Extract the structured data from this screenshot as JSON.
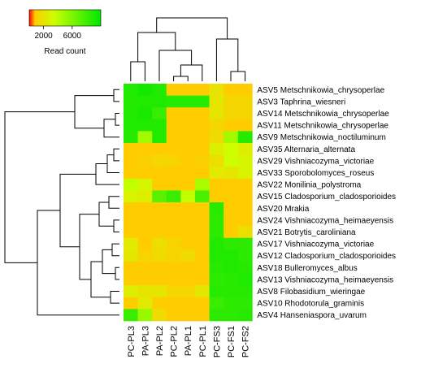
{
  "chart_data": {
    "type": "heatmap",
    "title": "",
    "xlabel": "",
    "ylabel": "",
    "columns": [
      "PC-PL3",
      "PA-PL3",
      "PA-PL2",
      "PC-PL2",
      "PA-PL1",
      "PC-PL1",
      "PC-FS3",
      "PC-FS1",
      "PC-FS2"
    ],
    "rows": [
      "ASV5 Metschnikowia_chrysoperlae",
      "ASV3 Taphrina_wiesneri",
      "ASV14 Metschnikowia_chrysoperlae",
      "ASV11 Metschnikowia_chrysoperlae",
      "ASV9 Metschnikowia_noctiluminum",
      "ASV35 Alternaria_alternata",
      "ASV29 Vishniacozyma_victoriae",
      "ASV33 Sporobolomyces_roseus",
      "ASV22 Monilinia_polystroma",
      "ASV15 Cladosporium_cladosporioides",
      "ASV20 Mrakia",
      "ASV24 Vishniacozyma_heimaeyensis",
      "ASV21 Botrytis_caroliniana",
      "ASV17 Vishniacozyma_victoriae",
      "ASV12 Cladosporium_cladosporioides",
      "ASV18 Bulleromyces_albus",
      "ASV13 Vishniacozyma_heimaeyensis",
      "ASV8 Filobasidium_wieringae",
      "ASV10 Rhodotorula_graminis",
      "ASV4 Hanseniaspora_uvarum"
    ],
    "values": [
      [
        9000,
        9400,
        9000,
        800,
        800,
        800,
        2000,
        800,
        800
      ],
      [
        9000,
        9000,
        9000,
        8800,
        8800,
        8800,
        2200,
        1400,
        1400
      ],
      [
        9000,
        9200,
        8200,
        800,
        800,
        800,
        2200,
        1400,
        1400
      ],
      [
        9000,
        9000,
        9000,
        800,
        800,
        800,
        1400,
        800,
        800
      ],
      [
        8800,
        4800,
        9000,
        800,
        800,
        800,
        1600,
        4800,
        8800
      ],
      [
        800,
        800,
        800,
        800,
        800,
        800,
        2600,
        3400,
        2600
      ],
      [
        800,
        1000,
        1400,
        1200,
        800,
        1000,
        1800,
        3400,
        3000
      ],
      [
        800,
        800,
        800,
        800,
        800,
        800,
        2400,
        2200,
        2800
      ],
      [
        3800,
        3000,
        800,
        800,
        800,
        4600,
        800,
        800,
        800
      ],
      [
        2800,
        2600,
        7200,
        8200,
        3800,
        7600,
        800,
        800,
        800
      ],
      [
        800,
        800,
        800,
        800,
        800,
        800,
        8800,
        800,
        800
      ],
      [
        800,
        800,
        800,
        800,
        800,
        800,
        8600,
        800,
        800
      ],
      [
        800,
        800,
        800,
        800,
        800,
        800,
        8600,
        800,
        1800
      ],
      [
        2400,
        800,
        1800,
        1200,
        800,
        800,
        9000,
        8600,
        8600
      ],
      [
        2200,
        1200,
        1600,
        1200,
        1600,
        800,
        9000,
        9000,
        8600
      ],
      [
        800,
        800,
        800,
        800,
        800,
        800,
        8800,
        9000,
        8800
      ],
      [
        800,
        800,
        800,
        800,
        800,
        800,
        8600,
        8800,
        9000
      ],
      [
        2600,
        2200,
        2200,
        1400,
        1400,
        2200,
        8800,
        8800,
        8800
      ],
      [
        800,
        2400,
        800,
        800,
        800,
        800,
        8200,
        8600,
        8600
      ],
      [
        8200,
        5200,
        1600,
        800,
        800,
        800,
        8600,
        8600,
        8800
      ]
    ],
    "colorbar": {
      "label": "Read count",
      "ticks": [
        2000,
        6000
      ],
      "range": [
        0,
        10000
      ],
      "colors": [
        "#ff0000",
        "#ffcc00",
        "#ccff00",
        "#00e600"
      ]
    },
    "dendrogram_rows": true,
    "dendrogram_columns": true
  }
}
